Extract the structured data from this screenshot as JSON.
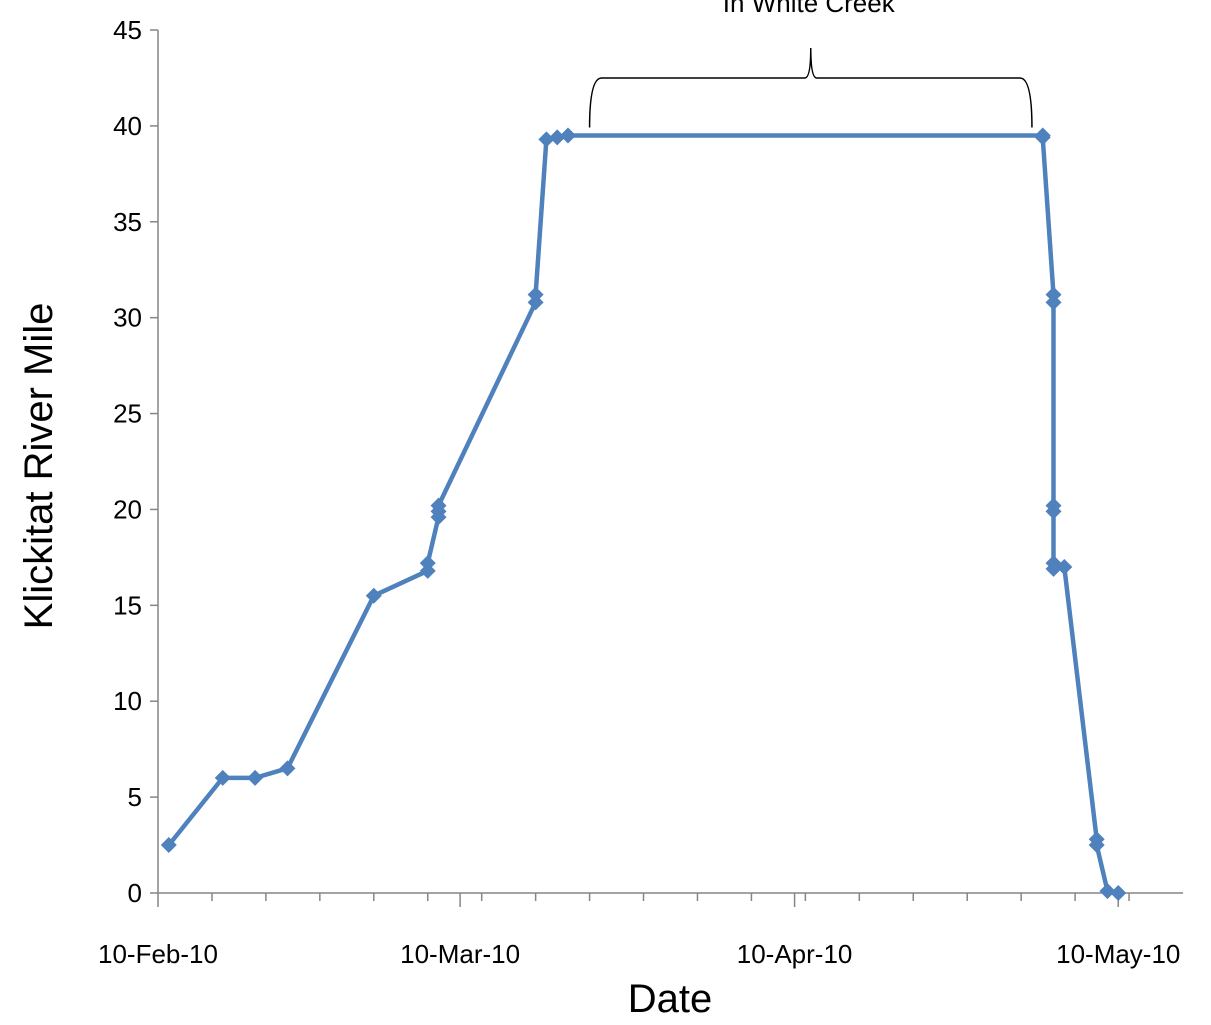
{
  "chart_data": {
    "type": "line",
    "xlabel": "Date",
    "ylabel": "Klickitat River Mile",
    "x_is_date": true,
    "xlim": [
      "2010-02-10",
      "2010-05-16"
    ],
    "ylim": [
      0,
      45
    ],
    "y_ticks": [
      0,
      5,
      10,
      15,
      20,
      25,
      30,
      35,
      40,
      45
    ],
    "x_ticks": [
      {
        "date": "2010-02-10",
        "label": "10-Feb-10"
      },
      {
        "date": "2010-03-10",
        "label": "10-Mar-10"
      },
      {
        "date": "2010-04-10",
        "label": "10-Apr-10"
      },
      {
        "date": "2010-05-10",
        "label": "10-May-10"
      }
    ],
    "grid": false,
    "legend": "none",
    "series_color": "#4F81BD",
    "series": [
      {
        "points": [
          {
            "x": "2010-02-11",
            "y": 2.5
          },
          {
            "x": "2010-02-16",
            "y": 6.0
          },
          {
            "x": "2010-02-19",
            "y": 6.0
          },
          {
            "x": "2010-02-22",
            "y": 6.5
          },
          {
            "x": "2010-03-02",
            "y": 15.5
          },
          {
            "x": "2010-03-07",
            "y": 16.8
          },
          {
            "x": "2010-03-07",
            "y": 17.2
          },
          {
            "x": "2010-03-08",
            "y": 19.6
          },
          {
            "x": "2010-03-08",
            "y": 19.9
          },
          {
            "x": "2010-03-08",
            "y": 20.2
          },
          {
            "x": "2010-03-17",
            "y": 30.8
          },
          {
            "x": "2010-03-17",
            "y": 31.2
          },
          {
            "x": "2010-03-18",
            "y": 39.3
          },
          {
            "x": "2010-03-19",
            "y": 39.4
          },
          {
            "x": "2010-03-20",
            "y": 39.5
          },
          {
            "x": "2010-05-03",
            "y": 39.5
          },
          {
            "x": "2010-05-03",
            "y": 39.4
          },
          {
            "x": "2010-05-04",
            "y": 31.2
          },
          {
            "x": "2010-05-04",
            "y": 30.8
          },
          {
            "x": "2010-05-04",
            "y": 20.2
          },
          {
            "x": "2010-05-04",
            "y": 19.9
          },
          {
            "x": "2010-05-04",
            "y": 17.2
          },
          {
            "x": "2010-05-04",
            "y": 16.9
          },
          {
            "x": "2010-05-05",
            "y": 17.0
          },
          {
            "x": "2010-05-08",
            "y": 2.8
          },
          {
            "x": "2010-05-08",
            "y": 2.5
          },
          {
            "x": "2010-05-09",
            "y": 0.1
          },
          {
            "x": "2010-05-10",
            "y": 0.0
          }
        ]
      }
    ],
    "annotations": [
      {
        "text": "In White Creek",
        "x_start": "2010-03-22",
        "x_end": "2010-05-02",
        "y": 42.5
      }
    ]
  }
}
